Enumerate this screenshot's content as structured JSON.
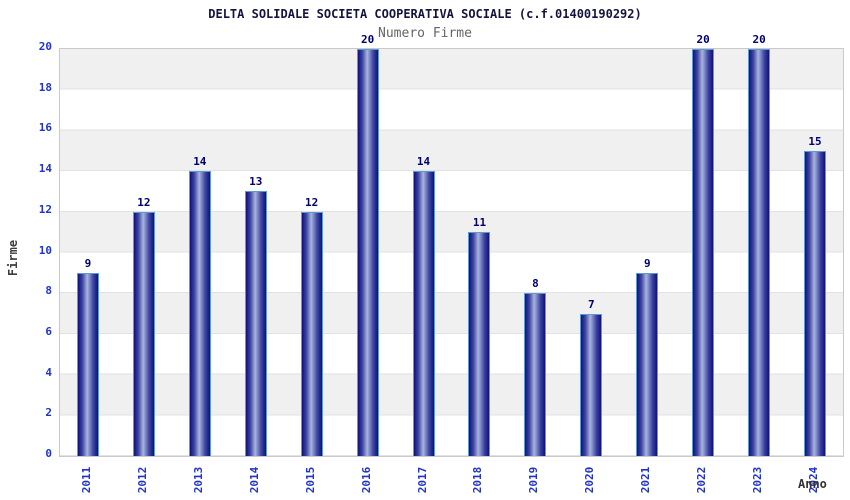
{
  "title": "DELTA SOLIDALE SOCIETA COOPERATIVA SOCIALE (c.f.01400190292)",
  "subtitle": "Numero Firme",
  "chart_data": {
    "type": "bar",
    "title": "DELTA SOLIDALE SOCIETA COOPERATIVA SOCIALE (c.f.01400190292)",
    "series_label": "Numero Firme",
    "categories": [
      "2011",
      "2012",
      "2013",
      "2014",
      "2015",
      "2016",
      "2017",
      "2018",
      "2019",
      "2020",
      "2021",
      "2022",
      "2023",
      "2024"
    ],
    "values": [
      9,
      12,
      14,
      13,
      12,
      20,
      14,
      11,
      8,
      7,
      9,
      20,
      20,
      15
    ],
    "xlabel": "Anno",
    "ylabel": "Firme",
    "ylim": [
      0,
      20
    ],
    "y_ticks": [
      0,
      2,
      4,
      6,
      8,
      10,
      12,
      14,
      16,
      18,
      20
    ],
    "grid": true,
    "band_stripes": true,
    "legend_position": "none"
  },
  "colors": {
    "bar_dark": "#10107a",
    "bar_mid": "#3d46a2",
    "bar_light": "#aab4de",
    "bar_border": "#5b9bd5",
    "value_label": "#00006e",
    "tick_label": "#2233cc",
    "title": "#14143f",
    "subtitle": "#666666",
    "axis_title": "#333333",
    "stripe_gray": "#f0f0f0",
    "gridline": "#e2e2e2",
    "plot_border": "#c9c9c9"
  }
}
